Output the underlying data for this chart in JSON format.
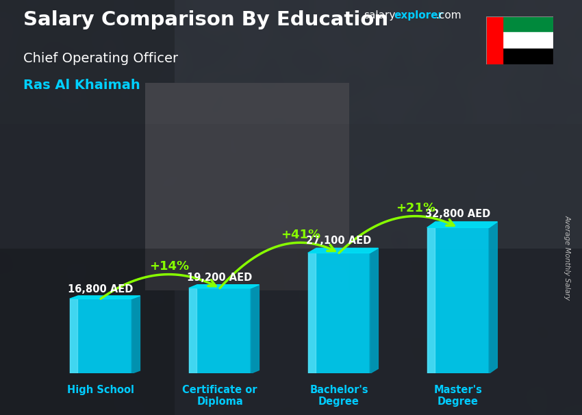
{
  "title": "Salary Comparison By Education",
  "subtitle": "Chief Operating Officer",
  "location": "Ras Al Khaimah",
  "ylabel": "Average Monthly Salary",
  "categories": [
    "High School",
    "Certificate or\nDiploma",
    "Bachelor's\nDegree",
    "Master's\nDegree"
  ],
  "values": [
    16800,
    19200,
    27100,
    32800
  ],
  "value_labels": [
    "16,800 AED",
    "19,200 AED",
    "27,100 AED",
    "32,800 AED"
  ],
  "pct_labels": [
    "+14%",
    "+41%",
    "+21%"
  ],
  "bar_front_color": "#00c8ec",
  "bar_side_color": "#0098b8",
  "bar_top_color": "#00ddf5",
  "bar_highlight_color": "#80eeff",
  "bg_color": "#3a3a4a",
  "title_color": "#ffffff",
  "subtitle_color": "#ffffff",
  "location_color": "#00d0ff",
  "value_label_color": "#ffffff",
  "pct_color": "#88ff00",
  "category_label_color": "#00ccff",
  "bar_width": 0.52,
  "figsize": [
    8.5,
    6.06
  ],
  "dpi": 100,
  "web_salary_color": "#ffffff",
  "web_explorer_color": "#00ccff",
  "web_com_color": "#ffffff"
}
